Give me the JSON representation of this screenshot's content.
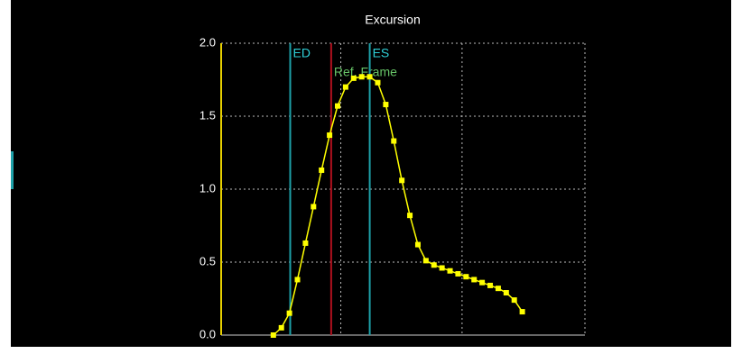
{
  "chart_data": {
    "type": "line",
    "title": "Excursion",
    "x": [
      0,
      1,
      2,
      3,
      4,
      5,
      6,
      7,
      8,
      9,
      10,
      11,
      12,
      13,
      14,
      15,
      16,
      17,
      18,
      19,
      20,
      21,
      22,
      23,
      24,
      25,
      26,
      27,
      28,
      29,
      30,
      31
    ],
    "series": [
      {
        "color": "#ffff00",
        "values": [
          0.0,
          0.05,
          0.15,
          0.38,
          0.63,
          0.88,
          1.13,
          1.37,
          1.57,
          1.7,
          1.76,
          1.77,
          1.77,
          1.73,
          1.58,
          1.33,
          1.06,
          0.82,
          0.62,
          0.51,
          0.48,
          0.46,
          0.44,
          0.42,
          0.4,
          0.38,
          0.36,
          0.34,
          0.32,
          0.29,
          0.24,
          0.16
        ]
      }
    ],
    "xlim": [
      -6.5,
      38.8
    ],
    "xgrid": [
      8.4,
      23.5
    ],
    "ylim": [
      0,
      2
    ],
    "yticks": [
      {
        "value": 0,
        "label": "0.0"
      },
      {
        "value": 0.5,
        "label": "0.5"
      },
      {
        "value": 1,
        "label": "1.0"
      },
      {
        "value": 1.5,
        "label": "1.5"
      },
      {
        "value": 2,
        "label": "2.0"
      }
    ],
    "grid": true,
    "markers": [
      {
        "label": "ED",
        "x": 2.1,
        "color": "#1ea0a8",
        "label_color": "#2fd0d8"
      },
      {
        "label": "Ref. Frame",
        "x": 7.2,
        "color": "#b0101e",
        "label_color": "#66c266"
      },
      {
        "label": "ES",
        "x": 12,
        "color": "#1ea0a8",
        "label_color": "#2fd0d8"
      }
    ]
  }
}
